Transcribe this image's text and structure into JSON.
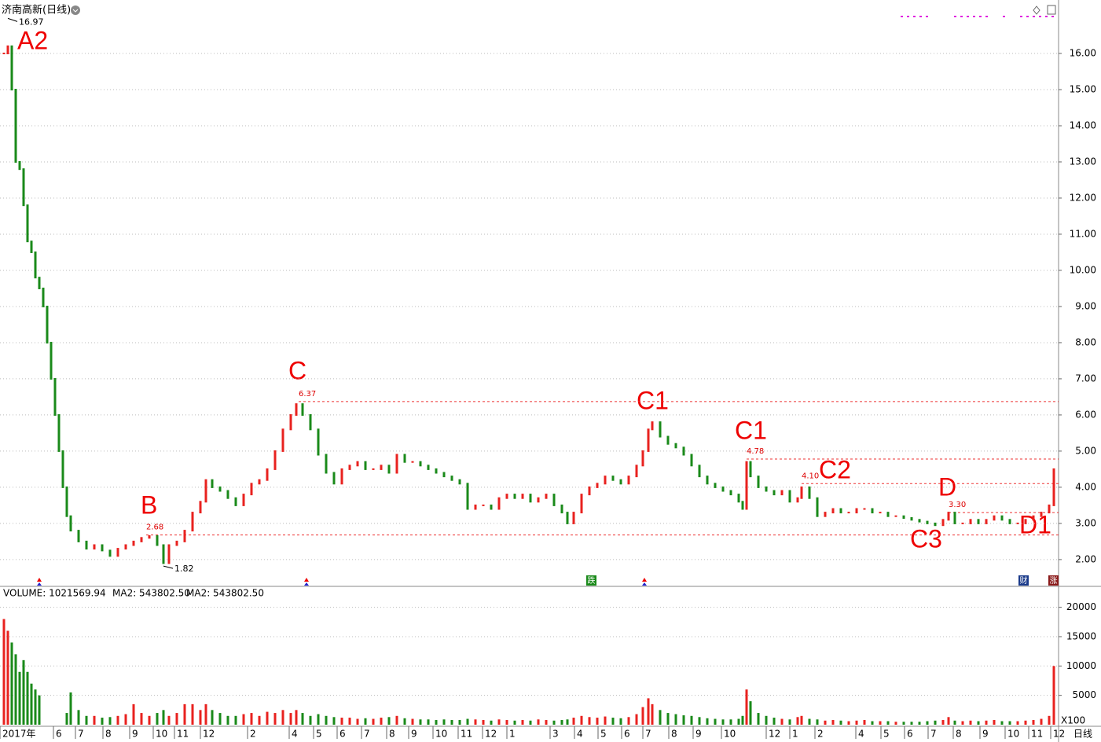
{
  "chart_data": [
    {
      "type": "candlestick",
      "title": "济南高新(日线)",
      "x": [
        5,
        10,
        15,
        20,
        25,
        30,
        35,
        40,
        45,
        50,
        55,
        60,
        65,
        70,
        75,
        80,
        85,
        90,
        100,
        110,
        120,
        130,
        140,
        150,
        160,
        170,
        180,
        190,
        200,
        208,
        215,
        225,
        235,
        245,
        255,
        262,
        270,
        280,
        290,
        300,
        310,
        320,
        330,
        340,
        350,
        360,
        370,
        377,
        385,
        395,
        405,
        415,
        425,
        435,
        445,
        455,
        465,
        475,
        485,
        495,
        505,
        515,
        525,
        535,
        545,
        555,
        565,
        575,
        585,
        595,
        605,
        615,
        625,
        635,
        645,
        655,
        665,
        675,
        685,
        695,
        705,
        715,
        722,
        730,
        740,
        750,
        760,
        770,
        780,
        790,
        800,
        810,
        818,
        825,
        830,
        840,
        850,
        860,
        870,
        880,
        890,
        900,
        910,
        920,
        930,
        940,
        945,
        950,
        955,
        965,
        975,
        985,
        995,
        1005,
        1015,
        1020,
        1030,
        1040,
        1050,
        1060,
        1070,
        1080,
        1090,
        1100,
        1110,
        1120,
        1130,
        1140,
        1150,
        1160,
        1170,
        1180,
        1190,
        1200,
        1207,
        1215,
        1225,
        1235,
        1245,
        1255,
        1265,
        1275,
        1285,
        1295,
        1305,
        1315,
        1325,
        1335,
        1341
      ],
      "values": [
        16.0,
        16.2,
        15.0,
        13.0,
        12.8,
        11.8,
        10.8,
        10.5,
        9.8,
        9.5,
        9.0,
        8.0,
        7.0,
        6.0,
        5.0,
        4.0,
        3.2,
        2.8,
        2.5,
        2.3,
        2.4,
        2.25,
        2.1,
        2.3,
        2.4,
        2.5,
        2.6,
        2.65,
        2.4,
        1.9,
        2.4,
        2.5,
        2.8,
        3.3,
        3.6,
        4.2,
        4.0,
        3.9,
        3.7,
        3.5,
        3.8,
        4.1,
        4.2,
        4.5,
        5.0,
        5.6,
        6.0,
        6.3,
        6.0,
        5.6,
        4.9,
        4.4,
        4.1,
        4.5,
        4.6,
        4.7,
        4.5,
        4.5,
        4.6,
        4.4,
        4.9,
        4.7,
        4.7,
        4.6,
        4.5,
        4.4,
        4.3,
        4.2,
        4.1,
        3.4,
        3.5,
        3.5,
        3.4,
        3.7,
        3.8,
        3.7,
        3.8,
        3.6,
        3.7,
        3.8,
        3.5,
        3.3,
        3.0,
        3.3,
        3.8,
        4.0,
        4.1,
        4.3,
        4.2,
        4.1,
        4.3,
        4.6,
        5.0,
        5.6,
        5.8,
        5.4,
        5.2,
        5.1,
        4.9,
        4.6,
        4.3,
        4.1,
        4.0,
        3.9,
        3.8,
        3.6,
        3.4,
        4.7,
        4.3,
        4.0,
        3.9,
        3.8,
        3.9,
        3.6,
        3.7,
        4.0,
        3.7,
        3.2,
        3.3,
        3.4,
        3.3,
        3.3,
        3.4,
        3.4,
        3.3,
        3.3,
        3.2,
        3.2,
        3.15,
        3.1,
        3.05,
        3.0,
        2.95,
        3.1,
        3.3,
        3.0,
        3.0,
        3.1,
        3.0,
        3.1,
        3.2,
        3.1,
        3.0,
        3.0,
        3.1,
        3.2,
        3.3,
        3.5,
        4.5
      ],
      "xlim": [
        0,
        1347
      ],
      "ylim": [
        1.28,
        17.37
      ],
      "yticks": [
        {
          "value": 2,
          "label": "2.00"
        },
        {
          "value": 3,
          "label": "3.00"
        },
        {
          "value": 4,
          "label": "4.00"
        },
        {
          "value": 5,
          "label": "5.00"
        },
        {
          "value": 6,
          "label": "6.00"
        },
        {
          "value": 7,
          "label": "7.00"
        },
        {
          "value": 8,
          "label": "8.00"
        },
        {
          "value": 9,
          "label": "9.00"
        },
        {
          "value": 10,
          "label": "10.00"
        },
        {
          "value": 11,
          "label": "11.00"
        },
        {
          "value": 12,
          "label": "12.00"
        },
        {
          "value": 13,
          "label": "13.00"
        },
        {
          "value": 14,
          "label": "14.00"
        },
        {
          "value": 15,
          "label": "15.00"
        },
        {
          "value": 16,
          "label": "16.00"
        }
      ],
      "grid": true,
      "high": {
        "value": 16.97,
        "label": "16.97"
      },
      "low": {
        "value": 1.82,
        "label": "1.82"
      },
      "levels": [
        {
          "value": 2.68,
          "label": "2.68"
        },
        {
          "value": 6.37,
          "label": "6.37"
        },
        {
          "value": 4.78,
          "label": "4.78"
        },
        {
          "value": 4.1,
          "label": "4.10"
        },
        {
          "value": 3.3,
          "label": "3.30"
        }
      ],
      "annotations": [
        "A2",
        "B",
        "C",
        "C1",
        "C1",
        "C2",
        "D",
        "C3",
        "D1"
      ],
      "events": [
        "跌",
        "财",
        "涨"
      ]
    },
    {
      "type": "bar",
      "title": "VOLUME: 1021569.94",
      "ma_labels": [
        {
          "label": "MA2: 543802.50",
          "color": "#000000"
        },
        {
          "label": "MA2: 543802.50",
          "color": "#e020e0"
        }
      ],
      "unit_label": "X100",
      "period_label": "日线",
      "values": [
        18000,
        16000,
        14000,
        12000,
        9000,
        11000,
        9000,
        7000,
        6000,
        5000,
        0,
        0,
        0,
        0,
        0,
        0,
        2000,
        5500,
        2500,
        1500,
        1500,
        1200,
        1300,
        1500,
        1800,
        3500,
        2000,
        1500,
        2000,
        2500,
        1500,
        2000,
        3500,
        3500,
        2500,
        3500,
        2500,
        2000,
        1500,
        1500,
        1800,
        2000,
        1500,
        2200,
        2000,
        2500,
        2000,
        2500,
        2000,
        1500,
        1800,
        1500,
        1300,
        1200,
        1200,
        1000,
        1100,
        1000,
        1200,
        1300,
        1500,
        1100,
        1000,
        900,
        900,
        800,
        900,
        800,
        800,
        1000,
        900,
        800,
        700,
        900,
        800,
        700,
        800,
        700,
        900,
        800,
        700,
        800,
        900,
        1200,
        1500,
        1300,
        1200,
        1400,
        1200,
        1100,
        1300,
        1800,
        3000,
        4500,
        3500,
        2500,
        2000,
        1800,
        1600,
        1500,
        1300,
        1100,
        1000,
        900,
        900,
        1000,
        1500,
        6000,
        4000,
        2000,
        1500,
        1200,
        1000,
        900,
        1300,
        1500,
        1000,
        900,
        700,
        800,
        700,
        600,
        700,
        800,
        600,
        600,
        600,
        500,
        500,
        500,
        500,
        600,
        700,
        800,
        1300,
        700,
        600,
        700,
        600,
        700,
        800,
        600,
        600,
        600,
        700,
        800,
        1000,
        1500,
        10000
      ],
      "ylim": [
        0,
        23430
      ],
      "yticks": [
        5000,
        10000,
        15000,
        20000
      ],
      "xticks": [
        {
          "value": 0,
          "label": "2017年"
        },
        {
          "value": 68,
          "label": "6"
        },
        {
          "value": 96,
          "label": "7"
        },
        {
          "value": 131,
          "label": "8"
        },
        {
          "value": 165,
          "label": "9"
        },
        {
          "value": 195,
          "label": "10"
        },
        {
          "value": 222,
          "label": "11"
        },
        {
          "value": 255,
          "label": "12"
        },
        {
          "value": 315,
          "label": "2"
        },
        {
          "value": 368,
          "label": "4"
        },
        {
          "value": 399,
          "label": "5"
        },
        {
          "value": 429,
          "label": "6"
        },
        {
          "value": 460,
          "label": "7"
        },
        {
          "value": 492,
          "label": "8"
        },
        {
          "value": 520,
          "label": "9"
        },
        {
          "value": 551,
          "label": "10"
        },
        {
          "value": 583,
          "label": "11"
        },
        {
          "value": 614,
          "label": "12"
        },
        {
          "value": 645,
          "label": "1"
        },
        {
          "value": 700,
          "label": "3"
        },
        {
          "value": 731,
          "label": "4"
        },
        {
          "value": 761,
          "label": "5"
        },
        {
          "value": 791,
          "label": "6"
        },
        {
          "value": 818,
          "label": "7"
        },
        {
          "value": 851,
          "label": "8"
        },
        {
          "value": 882,
          "label": "9"
        },
        {
          "value": 918,
          "label": "10"
        },
        {
          "value": 975,
          "label": "12"
        },
        {
          "value": 1005,
          "label": "1"
        },
        {
          "value": 1037,
          "label": "2"
        },
        {
          "value": 1089,
          "label": "4"
        },
        {
          "value": 1121,
          "label": "5"
        },
        {
          "value": 1151,
          "label": "6"
        },
        {
          "value": 1181,
          "label": "7"
        },
        {
          "value": 1213,
          "label": "8"
        },
        {
          "value": 1247,
          "label": "9"
        },
        {
          "value": 1279,
          "label": "10"
        },
        {
          "value": 1309,
          "label": "11"
        },
        {
          "value": 1337,
          "label": "12"
        }
      ],
      "grid": true
    }
  ]
}
